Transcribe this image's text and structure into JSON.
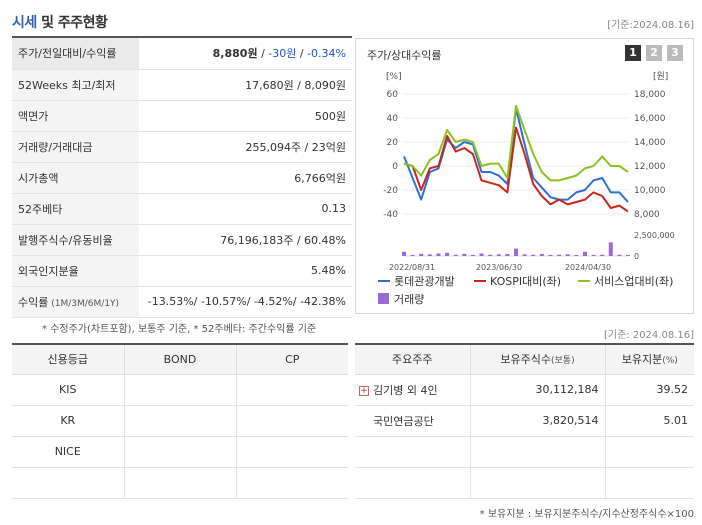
{
  "header": {
    "title_part1": "시세",
    "title_part2": " 및 주주현황",
    "date": "[기준:2024.08.16]"
  },
  "price_table": [
    {
      "label": "주가/전일대비/수익률",
      "v1": "8,880원",
      "v2": " / ",
      "v3": "-30원",
      "v4": " / ",
      "v5": "-0.34%"
    },
    {
      "label": "52Weeks 최고/최저",
      "value": "17,680원 / 8,090원"
    },
    {
      "label": "액면가",
      "value": "500원"
    },
    {
      "label": "거래량/거래대금",
      "value": "255,094주 / 23억원"
    },
    {
      "label": "시가총액",
      "value": "6,766억원"
    },
    {
      "label": "52주베타",
      "value": "0.13"
    },
    {
      "label": "발행주식수/유동비율",
      "value": "76,196,183주 / 60.48%"
    },
    {
      "label": "외국인지분율",
      "value": "5.48%"
    },
    {
      "label": "수익률",
      "label_sub": " (1M/3M/6M/1Y)",
      "value": "-13.53%/ -10.57%/ -4.52%/ -42.38%"
    }
  ],
  "note1": "* 수정주가(차트포함), 보통주 기준, * 52주베타: 주간수익률 기준",
  "chart_panel": {
    "title": "주가/상대수익률",
    "tabs": [
      "1",
      "2",
      "3"
    ]
  },
  "chart_data": {
    "type": "line",
    "x_labels": [
      "2022/08/31",
      "2023/06/30",
      "2024/04/30"
    ],
    "left_axis": {
      "unit": "[%]",
      "ticks": [
        60,
        40,
        20,
        0,
        -20,
        -40
      ]
    },
    "right_axis": {
      "unit": "[원]",
      "ticks": [
        "18,000",
        "16,000",
        "14,000",
        "12,000",
        "10,000",
        "8,000"
      ]
    },
    "volume_axis": {
      "ticks": [
        "2,500,000",
        "0"
      ]
    },
    "series": [
      {
        "name": "롯데관광개발",
        "color": "#2e6fd8",
        "values": [
          8,
          -10,
          -28,
          -5,
          -2,
          22,
          15,
          20,
          18,
          -5,
          -5,
          -8,
          -15,
          48,
          18,
          -10,
          -18,
          -26,
          -28,
          -28,
          -22,
          -20,
          -12,
          -10,
          -22,
          -22,
          -30
        ]
      },
      {
        "name": "KOSPI대비(좌)",
        "color": "#c8281c",
        "values": [
          2,
          0,
          -20,
          -2,
          0,
          25,
          12,
          15,
          10,
          -12,
          -14,
          -16,
          -22,
          32,
          10,
          -15,
          -25,
          -32,
          -28,
          -32,
          -30,
          -28,
          -22,
          -25,
          -35,
          -33,
          -38
        ]
      },
      {
        "name": "서비스업대비(좌)",
        "color": "#8bc121",
        "values": [
          2,
          0,
          -8,
          5,
          10,
          30,
          20,
          22,
          20,
          0,
          2,
          2,
          -10,
          50,
          30,
          10,
          -5,
          -12,
          -12,
          -10,
          -8,
          -2,
          0,
          8,
          0,
          0,
          -5
        ]
      }
    ],
    "volume": {
      "name": "거래량",
      "color": "#9b6ad6",
      "values": [
        0.2,
        0.05,
        0.1,
        0.08,
        0.12,
        0.15,
        0.06,
        0.1,
        0.05,
        0.12,
        0.06,
        0.08,
        0.1,
        0.35,
        0.08,
        0.06,
        0.1,
        0.05,
        0.06,
        0.08,
        0.05,
        0.2,
        0.05,
        0.06,
        0.65,
        0.06,
        0.05
      ]
    }
  },
  "date2": "[기준: 2024.08.16]",
  "credit": {
    "headers": [
      "신용등급",
      "BOND",
      "CP"
    ],
    "rows": [
      [
        "KIS",
        "",
        ""
      ],
      [
        "KR",
        "",
        ""
      ],
      [
        "NICE",
        "",
        ""
      ],
      [
        "",
        "",
        ""
      ]
    ]
  },
  "holders": {
    "headers": [
      "주요주주",
      "보유주식수",
      "(보통)",
      "보유지분",
      "(%)"
    ],
    "rows": [
      {
        "name": "김기병 외 4인",
        "shares": "30,112,184",
        "pct": "39.52",
        "expand": "+"
      },
      {
        "name": "국민연금공단",
        "shares": "3,820,514",
        "pct": "5.01",
        "expand": ""
      },
      {
        "name": "",
        "shares": "",
        "pct": "",
        "expand": ""
      },
      {
        "name": "",
        "shares": "",
        "pct": "",
        "expand": ""
      }
    ]
  },
  "note2": "* 보유지분 : 보유지분주식수/지수산정주식수×100"
}
